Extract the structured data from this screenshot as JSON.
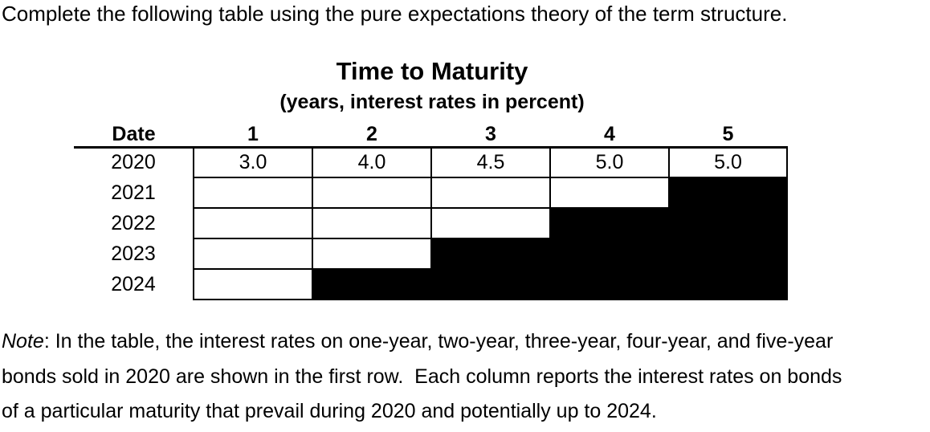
{
  "instruction": "Complete the following table using the pure expectations theory of the term structure.",
  "table": {
    "title": "Time to Maturity",
    "subtitle": "(years, interest rates in percent)",
    "header": {
      "date_label": "Date",
      "maturity_columns": [
        "1",
        "2",
        "3",
        "4",
        "5"
      ]
    },
    "rows": [
      {
        "date": "2020",
        "cells": [
          {
            "value": "3.0",
            "blocked": false
          },
          {
            "value": "4.0",
            "blocked": false
          },
          {
            "value": "4.5",
            "blocked": false
          },
          {
            "value": "5.0",
            "blocked": false
          },
          {
            "value": "5.0",
            "blocked": false
          }
        ]
      },
      {
        "date": "2021",
        "cells": [
          {
            "value": "",
            "blocked": false
          },
          {
            "value": "",
            "blocked": false
          },
          {
            "value": "",
            "blocked": false
          },
          {
            "value": "",
            "blocked": false
          },
          {
            "value": "",
            "blocked": true
          }
        ]
      },
      {
        "date": "2022",
        "cells": [
          {
            "value": "",
            "blocked": false
          },
          {
            "value": "",
            "blocked": false
          },
          {
            "value": "",
            "blocked": false
          },
          {
            "value": "",
            "blocked": true
          },
          {
            "value": "",
            "blocked": true
          }
        ]
      },
      {
        "date": "2023",
        "cells": [
          {
            "value": "",
            "blocked": false
          },
          {
            "value": "",
            "blocked": false
          },
          {
            "value": "",
            "blocked": true
          },
          {
            "value": "",
            "blocked": true
          },
          {
            "value": "",
            "blocked": true
          }
        ]
      },
      {
        "date": "2024",
        "cells": [
          {
            "value": "",
            "blocked": false
          },
          {
            "value": "",
            "blocked": true
          },
          {
            "value": "",
            "blocked": true
          },
          {
            "value": "",
            "blocked": true
          },
          {
            "value": "",
            "blocked": true
          }
        ]
      }
    ]
  },
  "note": {
    "label": "Note",
    "line1_rest": ": In the table, the interest rates on one-year, two-year, three-year, four-year, and five-year",
    "line2": "bonds sold in 2020 are shown in the first row.  Each column reports the interest rates on bonds",
    "line3": "of a particular maturity that prevail during 2020 and potentially up to 2024.",
    "first_row_year": "2020",
    "last_year": "2024"
  },
  "colors": {
    "background": "#ffffff",
    "text": "#000000",
    "border": "#000000",
    "blocked_cell": "#000000"
  }
}
